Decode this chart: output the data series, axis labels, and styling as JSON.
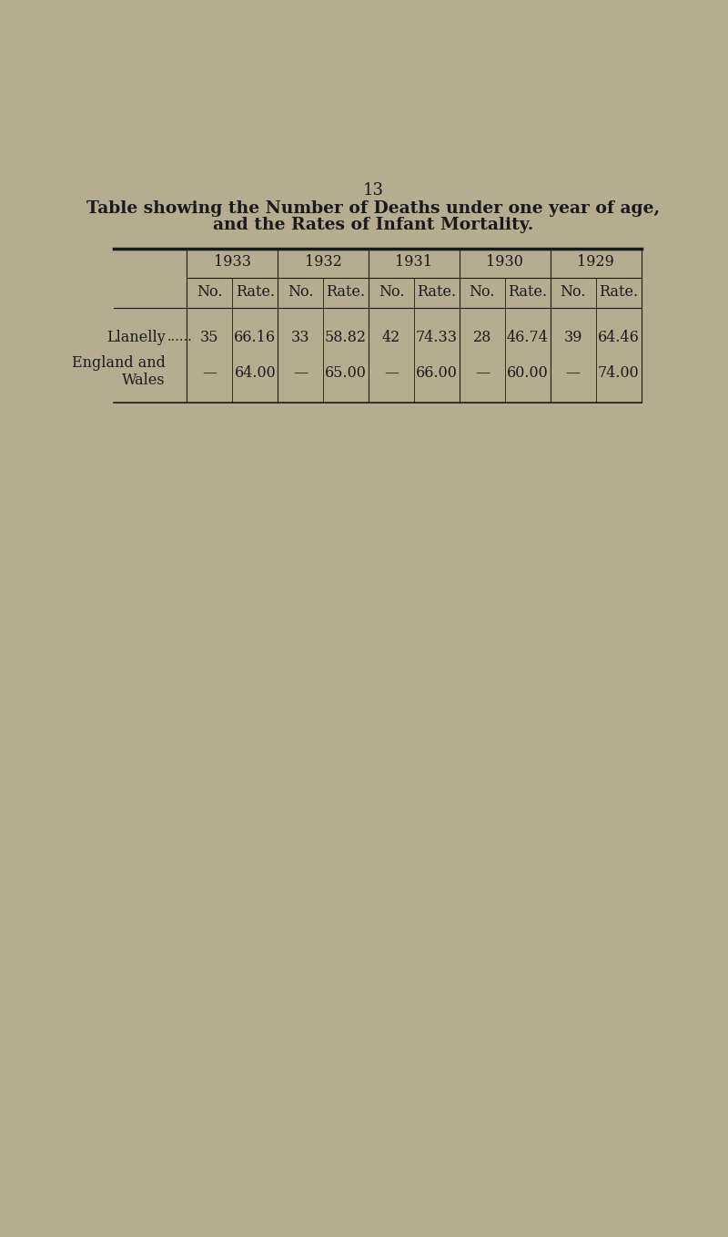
{
  "page_number": "13",
  "title_line1": "Table showing the Number of Deaths under one year of age,",
  "title_line2": "and the Rates of Infant Mortality.",
  "background_color": "#b5ad8f",
  "text_color": "#1a1a1a",
  "years": [
    "1933",
    "1932",
    "1931",
    "1930",
    "1929"
  ],
  "col_headers": [
    "No.",
    "Rate.",
    "No.",
    "Rate.",
    "No.",
    "Rate.",
    "No.",
    "Rate.",
    "No.",
    "Rate."
  ],
  "rows": [
    {
      "label1": "Llanelly",
      "label2": "......",
      "label3": "",
      "values": [
        "35",
        "66.16",
        "33",
        "58.82",
        "42",
        "74.33",
        "28",
        "46.74",
        "39",
        "64.46"
      ]
    },
    {
      "label1": "England and",
      "label2": "",
      "label3": "Wales",
      "values": [
        "—",
        "64.00",
        "—",
        "65.00",
        "—",
        "66.00",
        "—",
        "60.00",
        "—",
        "74.00"
      ]
    }
  ],
  "title_fontsize": 13.5,
  "page_num_fontsize": 13,
  "header_fontsize": 11.5,
  "cell_fontsize": 11.5,
  "label_fontsize": 11.5
}
